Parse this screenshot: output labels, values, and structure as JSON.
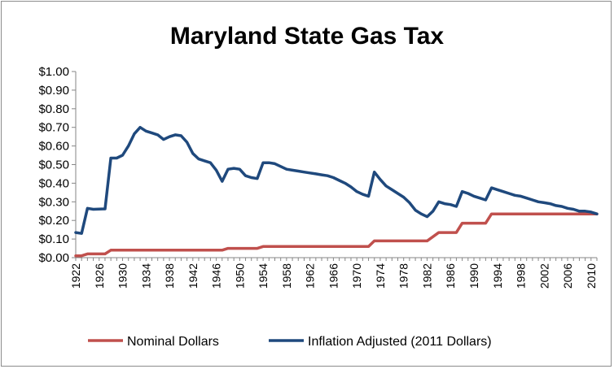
{
  "chart_data": {
    "type": "line",
    "title": "Maryland State Gas Tax",
    "xlabel": "",
    "ylabel": "",
    "x_ticks": [
      "1922",
      "1926",
      "1930",
      "1934",
      "1938",
      "1942",
      "1946",
      "1950",
      "1954",
      "1958",
      "1962",
      "1966",
      "1970",
      "1974",
      "1978",
      "1982",
      "1986",
      "1990",
      "1994",
      "1998",
      "2002",
      "2006",
      "2010"
    ],
    "y_ticks": [
      "$0.00",
      "$0.10",
      "$0.20",
      "$0.30",
      "$0.40",
      "$0.50",
      "$0.60",
      "$0.70",
      "$0.80",
      "$0.90",
      "$1.00"
    ],
    "xlim": [
      1922,
      2011
    ],
    "ylim": [
      0,
      1.0
    ],
    "grid": false,
    "legend_position": "bottom",
    "series": [
      {
        "name": "Nominal Dollars",
        "color": "#c0504d",
        "points": [
          [
            1922,
            0.01
          ],
          [
            1923,
            0.01
          ],
          [
            1924,
            0.02
          ],
          [
            1927,
            0.02
          ],
          [
            1928,
            0.04
          ],
          [
            1947,
            0.04
          ],
          [
            1948,
            0.05
          ],
          [
            1953,
            0.05
          ],
          [
            1954,
            0.06
          ],
          [
            1972,
            0.06
          ],
          [
            1973,
            0.09
          ],
          [
            1982,
            0.09
          ],
          [
            1984,
            0.135
          ],
          [
            1987,
            0.135
          ],
          [
            1988,
            0.185
          ],
          [
            1992,
            0.185
          ],
          [
            1993,
            0.235
          ],
          [
            2011,
            0.235
          ]
        ]
      },
      {
        "name": "Inflation Adjusted (2011 Dollars)",
        "color": "#1f497d",
        "points": [
          [
            1922,
            0.135
          ],
          [
            1923,
            0.13
          ],
          [
            1924,
            0.265
          ],
          [
            1925,
            0.26
          ],
          [
            1927,
            0.262
          ],
          [
            1928,
            0.535
          ],
          [
            1929,
            0.535
          ],
          [
            1930,
            0.55
          ],
          [
            1931,
            0.6
          ],
          [
            1932,
            0.665
          ],
          [
            1933,
            0.7
          ],
          [
            1934,
            0.68
          ],
          [
            1935,
            0.67
          ],
          [
            1936,
            0.66
          ],
          [
            1937,
            0.635
          ],
          [
            1938,
            0.65
          ],
          [
            1939,
            0.66
          ],
          [
            1940,
            0.655
          ],
          [
            1941,
            0.62
          ],
          [
            1942,
            0.56
          ],
          [
            1943,
            0.53
          ],
          [
            1944,
            0.52
          ],
          [
            1945,
            0.51
          ],
          [
            1946,
            0.47
          ],
          [
            1947,
            0.41
          ],
          [
            1948,
            0.475
          ],
          [
            1949,
            0.48
          ],
          [
            1950,
            0.475
          ],
          [
            1951,
            0.44
          ],
          [
            1952,
            0.43
          ],
          [
            1953,
            0.425
          ],
          [
            1954,
            0.51
          ],
          [
            1955,
            0.51
          ],
          [
            1956,
            0.505
          ],
          [
            1957,
            0.49
          ],
          [
            1958,
            0.475
          ],
          [
            1959,
            0.47
          ],
          [
            1960,
            0.465
          ],
          [
            1961,
            0.46
          ],
          [
            1962,
            0.455
          ],
          [
            1963,
            0.45
          ],
          [
            1964,
            0.445
          ],
          [
            1965,
            0.44
          ],
          [
            1966,
            0.43
          ],
          [
            1967,
            0.415
          ],
          [
            1968,
            0.4
          ],
          [
            1969,
            0.38
          ],
          [
            1970,
            0.355
          ],
          [
            1971,
            0.34
          ],
          [
            1972,
            0.33
          ],
          [
            1973,
            0.46
          ],
          [
            1974,
            0.42
          ],
          [
            1975,
            0.385
          ],
          [
            1976,
            0.365
          ],
          [
            1977,
            0.345
          ],
          [
            1978,
            0.325
          ],
          [
            1979,
            0.295
          ],
          [
            1980,
            0.255
          ],
          [
            1981,
            0.235
          ],
          [
            1982,
            0.22
          ],
          [
            1983,
            0.25
          ],
          [
            1984,
            0.3
          ],
          [
            1985,
            0.29
          ],
          [
            1986,
            0.285
          ],
          [
            1987,
            0.275
          ],
          [
            1988,
            0.355
          ],
          [
            1989,
            0.345
          ],
          [
            1990,
            0.33
          ],
          [
            1991,
            0.32
          ],
          [
            1992,
            0.31
          ],
          [
            1993,
            0.375
          ],
          [
            1994,
            0.365
          ],
          [
            1995,
            0.355
          ],
          [
            1996,
            0.345
          ],
          [
            1997,
            0.335
          ],
          [
            1998,
            0.33
          ],
          [
            1999,
            0.32
          ],
          [
            2000,
            0.31
          ],
          [
            2001,
            0.3
          ],
          [
            2002,
            0.295
          ],
          [
            2003,
            0.29
          ],
          [
            2004,
            0.28
          ],
          [
            2005,
            0.275
          ],
          [
            2006,
            0.265
          ],
          [
            2007,
            0.26
          ],
          [
            2008,
            0.25
          ],
          [
            2009,
            0.25
          ],
          [
            2010,
            0.245
          ],
          [
            2011,
            0.235
          ]
        ]
      }
    ]
  }
}
